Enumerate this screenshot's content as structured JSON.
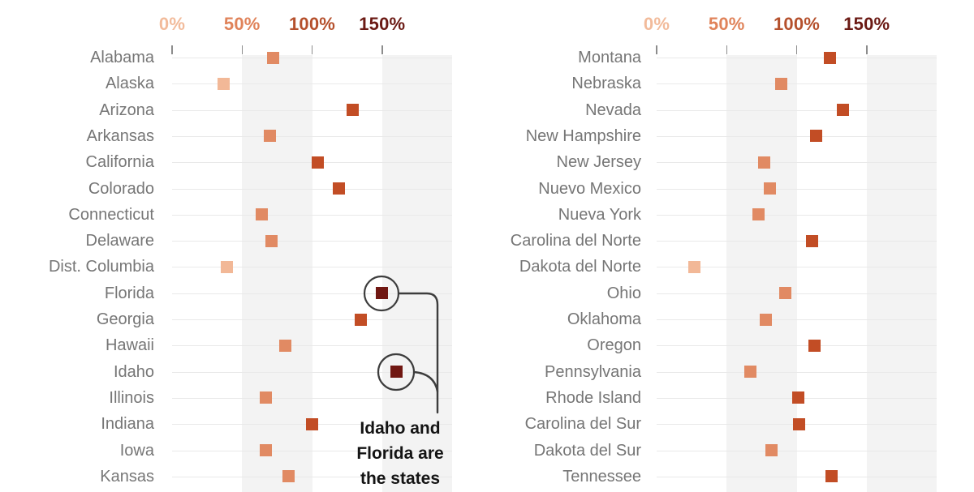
{
  "palette": {
    "tone_colors": [
      "#f2b897",
      "#e18a63",
      "#c24d25",
      "#701712"
    ],
    "tone_meaning": [
      "under 50%",
      "50-100%",
      "100-150%",
      "150% and over"
    ],
    "axis_label_colors": [
      "#f2bb9b",
      "#e0835a",
      "#b5502c",
      "#6b1a14"
    ],
    "band_color": "#f3f3f3",
    "row_line_color": "#e9e9e9",
    "tick_color": "#8c8c8c",
    "label_color": "#767676",
    "annotation_line_color": "#3d3d3d",
    "annotation_text_color": "#141414",
    "background_color": "#ffffff"
  },
  "chart_data": {
    "type": "scatter",
    "subtype": "dot_strip_plot_two_panels",
    "title": "",
    "x_unit": "%",
    "x_range": [
      0,
      200
    ],
    "x_tick_values": [
      0,
      50,
      100,
      150
    ],
    "x_tick_labels": [
      "0%",
      "50%",
      "100%",
      "150%"
    ],
    "shaded_bands": [
      [
        50,
        100
      ],
      [
        150,
        200
      ]
    ],
    "grid": "horizontal row lines per state",
    "legend_position": "none (color of each square encodes its value bin, matching axis label colors)",
    "panels": [
      {
        "name": "left",
        "rows": [
          {
            "label": "Alabama",
            "value": 72,
            "tone": 1
          },
          {
            "label": "Alaska",
            "value": 37,
            "tone": 0
          },
          {
            "label": "Arizona",
            "value": 129,
            "tone": 2
          },
          {
            "label": "Arkansas",
            "value": 70,
            "tone": 1
          },
          {
            "label": "California",
            "value": 104,
            "tone": 2
          },
          {
            "label": "Colorado",
            "value": 119,
            "tone": 2
          },
          {
            "label": "Connecticut",
            "value": 64,
            "tone": 1
          },
          {
            "label": "Delaware",
            "value": 71,
            "tone": 1
          },
          {
            "label": "Dist. Columbia",
            "value": 39,
            "tone": 0
          },
          {
            "label": "Florida",
            "value": 150,
            "tone": 3,
            "circled": true
          },
          {
            "label": "Georgia",
            "value": 135,
            "tone": 2
          },
          {
            "label": "Hawaii",
            "value": 81,
            "tone": 1
          },
          {
            "label": "Idaho",
            "value": 160,
            "tone": 3,
            "circled": true
          },
          {
            "label": "Illinois",
            "value": 67,
            "tone": 1
          },
          {
            "label": "Indiana",
            "value": 100,
            "tone": 2
          },
          {
            "label": "Iowa",
            "value": 67,
            "tone": 1
          },
          {
            "label": "Kansas",
            "value": 83,
            "tone": 1
          }
        ]
      },
      {
        "name": "right",
        "rows": [
          {
            "label": "Montana",
            "value": 124,
            "tone": 2
          },
          {
            "label": "Nebraska",
            "value": 89,
            "tone": 1
          },
          {
            "label": "Nevada",
            "value": 133,
            "tone": 2
          },
          {
            "label": "New Hampshire",
            "value": 114,
            "tone": 2
          },
          {
            "label": "New Jersey",
            "value": 77,
            "tone": 1
          },
          {
            "label": "Nuevo Mexico",
            "value": 81,
            "tone": 1
          },
          {
            "label": "Nueva York",
            "value": 73,
            "tone": 1
          },
          {
            "label": "Carolina del Norte",
            "value": 111,
            "tone": 2
          },
          {
            "label": "Dakota del Norte",
            "value": 27,
            "tone": 0
          },
          {
            "label": "Ohio",
            "value": 92,
            "tone": 1
          },
          {
            "label": "Oklahoma",
            "value": 78,
            "tone": 1
          },
          {
            "label": "Oregon",
            "value": 113,
            "tone": 2
          },
          {
            "label": "Pennsylvania",
            "value": 67,
            "tone": 1
          },
          {
            "label": "Rhode Island",
            "value": 101,
            "tone": 2
          },
          {
            "label": "Carolina del Sur",
            "value": 102,
            "tone": 2
          },
          {
            "label": "Dakota del Sur",
            "value": 82,
            "tone": 1
          },
          {
            "label": "Tennessee",
            "value": 125,
            "tone": 2
          }
        ]
      }
    ],
    "annotation": {
      "lines": [
        "Idaho and",
        "Florida are",
        "the states"
      ],
      "visible_text": "Idaho and Florida are the states",
      "highlighted_rows": [
        "Florida",
        "Idaho"
      ]
    }
  }
}
